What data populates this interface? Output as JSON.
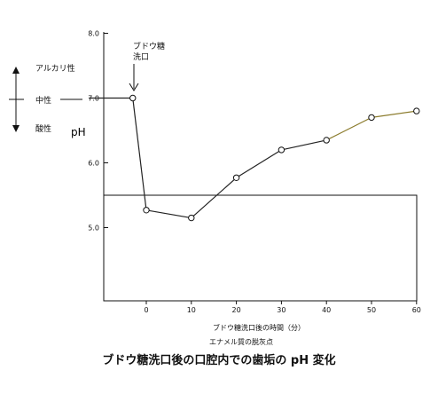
{
  "chart_data": {
    "type": "line",
    "title": "ブドウ糖洗口後の口腔内での歯垢の pH 変化",
    "xlabel": "ブドウ糖洗口後の時間（分）",
    "ylabel": "pH",
    "x": [
      -3,
      0,
      10,
      20,
      30,
      40,
      50,
      60
    ],
    "series": [
      {
        "values": [
          7.0,
          5.27,
          5.15,
          5.77,
          6.2,
          6.35,
          6.7,
          6.8
        ]
      }
    ],
    "xlim": [
      -10,
      60
    ],
    "ylim": [
      4.0,
      8.0
    ],
    "x_ticks": [
      "0",
      "10",
      "20",
      "30",
      "40",
      "50",
      "60"
    ],
    "y_ticks": [
      "5.0",
      "6.0",
      "7.0",
      "8.0"
    ],
    "threshold": {
      "value": 5.5,
      "label": "エナメル質の脱灰点"
    },
    "grid": false,
    "annotations": {
      "glucose_rinse": [
        "ブドウ糖",
        "洗口"
      ],
      "alkaline": "アルカリ性",
      "neutral": "中性",
      "acidic": "酸性"
    },
    "colors": {
      "line": "#222222",
      "line_late": "#8a7a2a",
      "axis": "#111111"
    }
  }
}
